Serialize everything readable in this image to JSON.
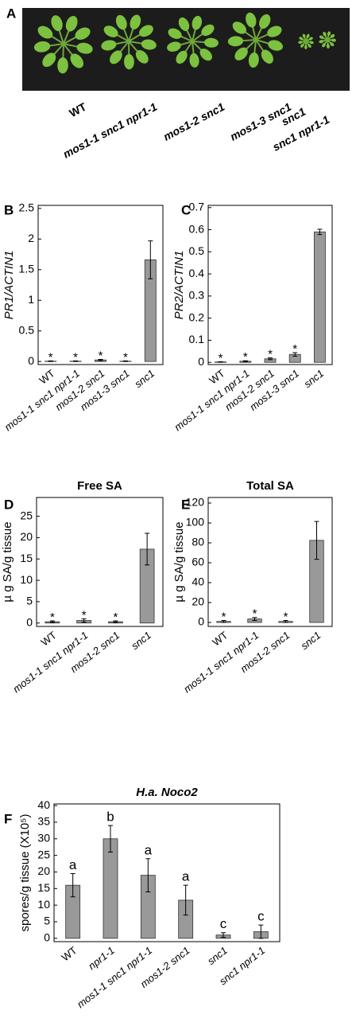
{
  "panel_a": {
    "label": "A",
    "genotypes": [
      "WT",
      "mos1-1 snc1 npr1-1",
      "mos1-2 snc1",
      "mos1-3 snc1",
      "snc1",
      "snc1 npr1-1"
    ]
  },
  "chart_data": [
    {
      "type": "bar",
      "panel_label": "B",
      "y_label": "PR1/ACTIN1",
      "categories": [
        "WT",
        "mos1-1 snc1 npr1-1",
        "mos1-2 snc1",
        "mos1-3 snc1",
        "snc1"
      ],
      "values": [
        0.005,
        0.005,
        0.025,
        0.005,
        1.66
      ],
      "errors": [
        0.005,
        0.005,
        0.01,
        0.005,
        0.31
      ],
      "annotations": [
        "*",
        "*",
        "*",
        "*",
        null
      ],
      "color": "#999999",
      "ylim": [
        -0.05,
        2.55
      ],
      "yticks": [
        0,
        0.5,
        1,
        1.5,
        2,
        2.5
      ]
    },
    {
      "type": "bar",
      "panel_label": "C",
      "y_label": "PR2/ACTIN1",
      "categories": [
        "WT",
        "mos1-1 snc1 npr1-1",
        "mos1-2 snc1",
        "mos1-3 snc1",
        "snc1"
      ],
      "values": [
        0.002,
        0.005,
        0.016,
        0.036,
        0.59
      ],
      "errors": [
        0.001,
        0.002,
        0.004,
        0.008,
        0.012
      ],
      "annotations": [
        "*",
        "*",
        "*",
        "*",
        null
      ],
      "color": "#999999",
      "ylim": [
        -0.01,
        0.71
      ],
      "yticks": [
        0,
        0.1,
        0.2,
        0.3,
        0.4,
        0.5,
        0.6,
        0.7
      ]
    },
    {
      "type": "bar",
      "panel_label": "D",
      "title": "Free SA",
      "y_label": "µ g SA/g tissue",
      "categories": [
        "WT",
        "mos1-1 snc1 npr1-1",
        "mos1-2 snc1",
        "snc1"
      ],
      "values": [
        0.3,
        0.6,
        0.3,
        17.3
      ],
      "errors": [
        0.2,
        0.4,
        0.2,
        3.7
      ],
      "annotations": [
        "*",
        "*",
        "*",
        null
      ],
      "color": "#999999",
      "ylim": [
        -0.8,
        29.4
      ],
      "yticks": [
        0,
        5,
        10,
        15,
        20,
        25
      ]
    },
    {
      "type": "bar",
      "panel_label": "E",
      "title": "Total SA",
      "y_label": "µ g SA/g tissue",
      "categories": [
        "WT",
        "mos1-1 snc1 npr1-1",
        "mos1-2 snc1",
        "snc1"
      ],
      "values": [
        1,
        3.5,
        1,
        82.5
      ],
      "errors": [
        1,
        1.5,
        1,
        19
      ],
      "annotations": [
        "*",
        "*",
        "*",
        null
      ],
      "color": "#999999",
      "ylim": [
        -4,
        125.6
      ],
      "yticks": [
        0,
        20,
        40,
        60,
        80,
        100,
        120
      ]
    },
    {
      "type": "bar",
      "panel_label": "F",
      "title": "H.a. Noco2",
      "y_label": "spores/g tissue (X10⁵)",
      "categories": [
        "WT",
        "npr1-1",
        "mos1-1 snc1 npr1-1",
        "mos1-2 snc1",
        "snc1",
        "snc1 npr1-1"
      ],
      "values": [
        16,
        30,
        19,
        11.5,
        1,
        2
      ],
      "errors": [
        3.5,
        4,
        5,
        4.5,
        0.7,
        2
      ],
      "annotations": [
        "a",
        "b",
        "a",
        "a",
        "c",
        "c"
      ],
      "color": "#999999",
      "ylim": [
        -1,
        40.5
      ],
      "yticks": [
        0,
        5,
        10,
        15,
        20,
        25,
        30,
        35,
        40
      ]
    }
  ]
}
